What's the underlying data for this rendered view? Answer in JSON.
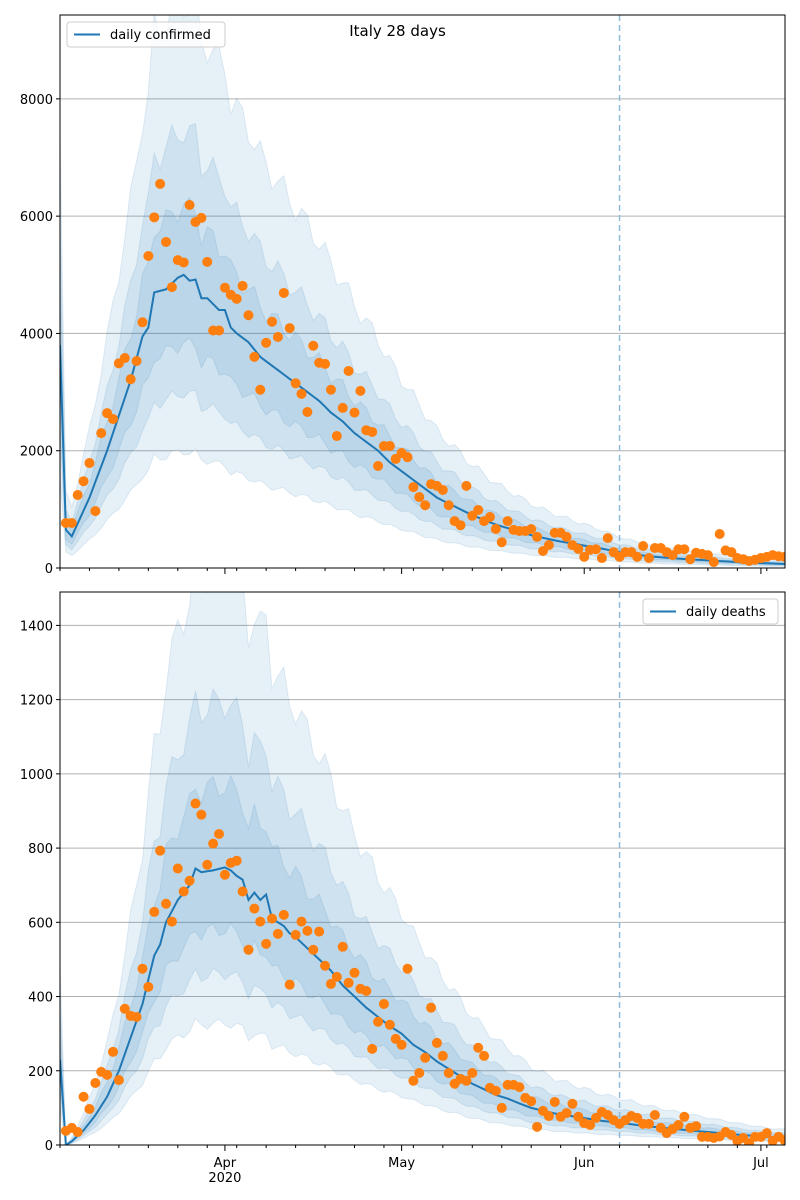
{
  "chart_data": [
    {
      "type": "line",
      "title": "Italy 28 days",
      "legend": {
        "label": "daily confirmed",
        "placement": "top-left"
      },
      "x_start": "2020-03-04",
      "x_days": 124,
      "forecast_start_day": 95,
      "ylim": [
        0,
        9430
      ],
      "yticks": [
        0,
        2000,
        4000,
        6000,
        8000
      ],
      "ytick_labels": [
        "0",
        "2000",
        "4000",
        "6000",
        "8000"
      ],
      "xtick_labels": [],
      "grid": "horizontal",
      "band_ratios": [
        [
          0.4,
          1.95
        ],
        [
          0.6,
          1.5
        ],
        [
          0.77,
          1.24
        ]
      ],
      "mean_knots": [
        [
          0,
          3800
        ],
        [
          1,
          650
        ],
        [
          2,
          540
        ],
        [
          5,
          1200
        ],
        [
          8,
          2000
        ],
        [
          10,
          2600
        ],
        [
          12,
          3200
        ],
        [
          14,
          3950
        ],
        [
          15,
          4100
        ],
        [
          16,
          4700
        ],
        [
          18,
          4750
        ],
        [
          20,
          4950
        ],
        [
          21,
          5000
        ],
        [
          22,
          4900
        ],
        [
          23,
          4920
        ],
        [
          24,
          4600
        ],
        [
          25,
          4600
        ],
        [
          26,
          4500
        ],
        [
          27,
          4400
        ],
        [
          28,
          4400
        ],
        [
          29,
          4100
        ],
        [
          30,
          4000
        ],
        [
          32,
          3850
        ],
        [
          34,
          3600
        ],
        [
          36,
          3450
        ],
        [
          38,
          3300
        ],
        [
          40,
          3150
        ],
        [
          42,
          3000
        ],
        [
          44,
          2850
        ],
        [
          46,
          2650
        ],
        [
          48,
          2500
        ],
        [
          50,
          2300
        ],
        [
          52,
          2150
        ],
        [
          54,
          2000
        ],
        [
          56,
          1800
        ],
        [
          58,
          1650
        ],
        [
          60,
          1500
        ],
        [
          62,
          1350
        ],
        [
          64,
          1200
        ],
        [
          66,
          1100
        ],
        [
          68,
          1000
        ],
        [
          70,
          900
        ],
        [
          72,
          820
        ],
        [
          74,
          740
        ],
        [
          76,
          680
        ],
        [
          78,
          620
        ],
        [
          80,
          560
        ],
        [
          84,
          470
        ],
        [
          88,
          400
        ],
        [
          92,
          330
        ],
        [
          95,
          270
        ],
        [
          100,
          200
        ],
        [
          105,
          160
        ],
        [
          110,
          130
        ],
        [
          115,
          100
        ],
        [
          120,
          80
        ],
        [
          123,
          70
        ]
      ],
      "observed": [
        null,
        767,
        767,
        1245,
        1480,
        1790,
        970,
        2300,
        2640,
        2540,
        3490,
        3580,
        3220,
        3530,
        4190,
        5320,
        5980,
        6550,
        5560,
        4790,
        5250,
        5210,
        6190,
        5900,
        5970,
        5220,
        4050,
        4050,
        4780,
        4660,
        4590,
        4810,
        4310,
        3600,
        3040,
        3840,
        4200,
        3940,
        4690,
        4090,
        3150,
        2970,
        2660,
        3790,
        3500,
        3480,
        3040,
        2250,
        2730,
        3360,
        2650,
        3020,
        2350,
        2320,
        1740,
        2080,
        2080,
        1860,
        1960,
        1890,
        1380,
        1210,
        1070,
        1430,
        1400,
        1330,
        1070,
        800,
        730,
        1400,
        890,
        990,
        800,
        870,
        665,
        440,
        800,
        650,
        630,
        630,
        665,
        530,
        290,
        390,
        600,
        600,
        530,
        390,
        324,
        190,
        310,
        320,
        170,
        510,
        270,
        190,
        270,
        270,
        190,
        375,
        170,
        340,
        340,
        270,
        220,
        320,
        320,
        150,
        260,
        240,
        220,
        100,
        580,
        300,
        270,
        170,
        150,
        120,
        140,
        170,
        190,
        220,
        200,
        190
      ],
      "colors": {
        "line": "#1f77b4",
        "band": "#1f77b4",
        "observed": "#ff7f0e",
        "forecast_line": "#8fbbd9",
        "grid": "#b0b0b0"
      }
    },
    {
      "type": "line",
      "title": "",
      "legend": {
        "label": "daily deaths",
        "placement": "top-right"
      },
      "x_start": "2020-03-04",
      "x_days": 124,
      "forecast_start_day": 95,
      "ylim": [
        0,
        1490
      ],
      "yticks": [
        0,
        200,
        400,
        600,
        800,
        1000,
        1200,
        1400
      ],
      "ytick_labels": [
        "0",
        "200",
        "400",
        "600",
        "800",
        "1000",
        "1200",
        "1400"
      ],
      "xticks_day": [
        28,
        58,
        89,
        119
      ],
      "xtick_labels": [
        "Apr",
        "May",
        "Jun",
        "Jul"
      ],
      "xtick_year": "2020",
      "grid": "horizontal",
      "band_ratios": [
        [
          0.44,
          2.1
        ],
        [
          0.62,
          1.6
        ],
        [
          0.78,
          1.3
        ]
      ],
      "mean_knots": [
        [
          0,
          230
        ],
        [
          1,
          0
        ],
        [
          2,
          10
        ],
        [
          4,
          40
        ],
        [
          6,
          80
        ],
        [
          8,
          130
        ],
        [
          10,
          200
        ],
        [
          12,
          290
        ],
        [
          14,
          380
        ],
        [
          16,
          510
        ],
        [
          17,
          540
        ],
        [
          18,
          600
        ],
        [
          20,
          660
        ],
        [
          22,
          700
        ],
        [
          23,
          745
        ],
        [
          24,
          735
        ],
        [
          26,
          740
        ],
        [
          28,
          748
        ],
        [
          29,
          740
        ],
        [
          30,
          725
        ],
        [
          31,
          715
        ],
        [
          32,
          660
        ],
        [
          33,
          680
        ],
        [
          34,
          660
        ],
        [
          35,
          675
        ],
        [
          36,
          610
        ],
        [
          37,
          600
        ],
        [
          38,
          590
        ],
        [
          39,
          570
        ],
        [
          40,
          560
        ],
        [
          42,
          530
        ],
        [
          44,
          500
        ],
        [
          46,
          470
        ],
        [
          48,
          430
        ],
        [
          50,
          400
        ],
        [
          52,
          370
        ],
        [
          54,
          345
        ],
        [
          56,
          320
        ],
        [
          58,
          300
        ],
        [
          60,
          270
        ],
        [
          62,
          250
        ],
        [
          64,
          225
        ],
        [
          66,
          205
        ],
        [
          68,
          185
        ],
        [
          70,
          165
        ],
        [
          72,
          150
        ],
        [
          74,
          135
        ],
        [
          76,
          125
        ],
        [
          78,
          112
        ],
        [
          80,
          100
        ],
        [
          84,
          85
        ],
        [
          88,
          75
        ],
        [
          92,
          65
        ],
        [
          95,
          60
        ],
        [
          100,
          50
        ],
        [
          105,
          42
        ],
        [
          110,
          35
        ],
        [
          115,
          28
        ],
        [
          120,
          22
        ],
        [
          123,
          20
        ]
      ],
      "observed": [
        null,
        38,
        46,
        35,
        130,
        97,
        167,
        197,
        189,
        251,
        175,
        367,
        348,
        345,
        475,
        426,
        628,
        793,
        650,
        602,
        745,
        683,
        712,
        920,
        890,
        755,
        812,
        838,
        728,
        760,
        766,
        683,
        526,
        637,
        602,
        542,
        610,
        569,
        620,
        432,
        566,
        602,
        577,
        526,
        575,
        483,
        434,
        453,
        534,
        437,
        464,
        421,
        415,
        259,
        332,
        380,
        324,
        286,
        270,
        475,
        173,
        194,
        235,
        370,
        275,
        240,
        194,
        165,
        178,
        173,
        194,
        262,
        240,
        154,
        146,
        100,
        162,
        162,
        156,
        127,
        118,
        49,
        92,
        78,
        116,
        76,
        86,
        111,
        76,
        59,
        54,
        73,
        89,
        81,
        67,
        57,
        67,
        78,
        73,
        57,
        57,
        81,
        46,
        32,
        43,
        54,
        76,
        46,
        51,
        22,
        22,
        19,
        23,
        35,
        27,
        11,
        19,
        5,
        22,
        22,
        32,
        11,
        22,
        13
      ],
      "colors": {
        "line": "#1f77b4",
        "band": "#1f77b4",
        "observed": "#ff7f0e",
        "forecast_line": "#8fbbd9",
        "grid": "#b0b0b0"
      }
    }
  ]
}
